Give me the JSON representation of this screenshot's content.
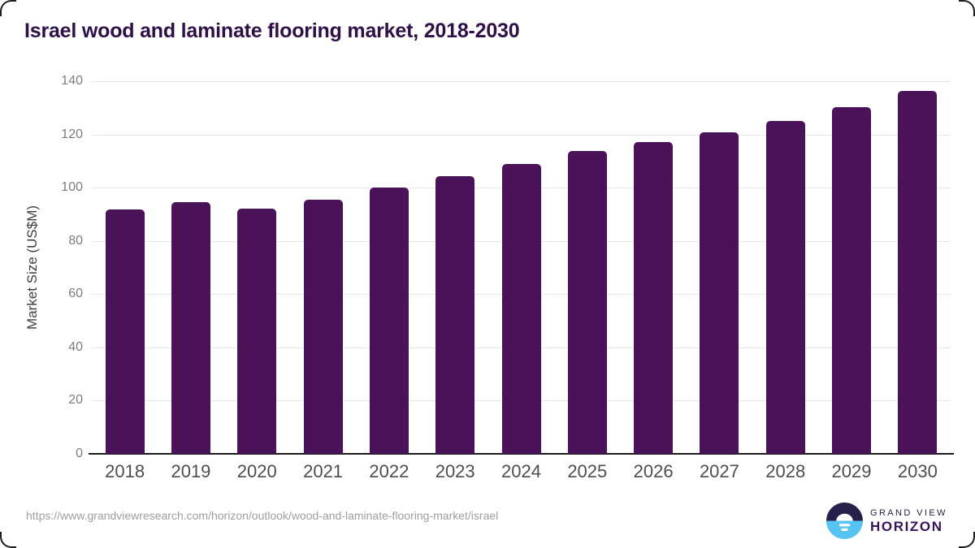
{
  "page": {
    "title": "Israel wood and laminate flooring market, 2018-2030",
    "source_url": "https://www.grandviewresearch.com/horizon/outlook/wood-and-laminate-flooring-market/israel"
  },
  "logo": {
    "line1": "GRAND VIEW",
    "line2": "HORIZON"
  },
  "colors": {
    "bar": "#4a1259",
    "title_text": "#2e0f47",
    "axis_line": "#1a1a1a",
    "gridline": "#e7e7e7",
    "y_tick_label": "#7d7d7d",
    "x_tick_label": "#4d4d4d",
    "axis_title": "#3f3f3f",
    "source_text": "#9e9e9e",
    "logo_dark_navy": "#26204a",
    "logo_purple": "#351457",
    "logo_blue": "#56c3f0"
  },
  "chart_data": {
    "type": "bar",
    "title": "Israel wood and laminate flooring market, 2018-2030",
    "categories": [
      "2018",
      "2019",
      "2020",
      "2021",
      "2022",
      "2023",
      "2024",
      "2025",
      "2026",
      "2027",
      "2028",
      "2029",
      "2030"
    ],
    "values": [
      91.8,
      94.7,
      92.1,
      95.6,
      100.1,
      104.4,
      108.9,
      113.7,
      117.0,
      120.8,
      125.1,
      130.3,
      136.4
    ],
    "xlabel": "",
    "ylabel": "Market Size (US$M)",
    "ylim": [
      0,
      140
    ],
    "ytick_step": 20,
    "grid": "horizontal-gridlines",
    "legend_position": "none",
    "bar_color": "#4a1259"
  }
}
